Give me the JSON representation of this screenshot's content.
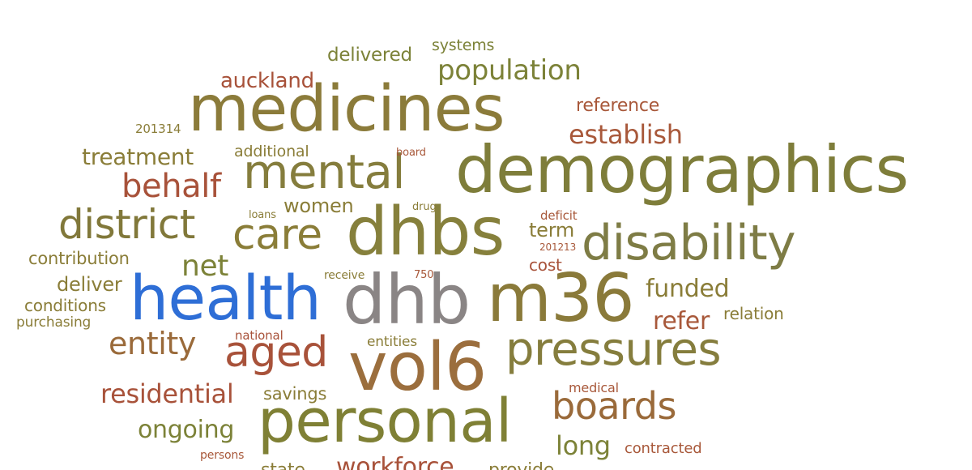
{
  "colors": {
    "olive": "#8a7d38",
    "olive_dark": "#7b7a3c",
    "olive_green": "#7c8238",
    "brown": "#9a6a3a",
    "rust": "#a8523a",
    "blue": "#2e6ed6",
    "gray": "#8a8585"
  },
  "words": [
    {
      "text": "medicines",
      "color": "#8b7b3a"
    },
    {
      "text": "demographics",
      "color": "#7e7d3a"
    },
    {
      "text": "dhbs",
      "color": "#86803c"
    },
    {
      "text": "dhb",
      "color": "#8a8585"
    },
    {
      "text": "m36",
      "color": "#8a7a3a"
    },
    {
      "text": "vol6",
      "color": "#9b6e3d"
    },
    {
      "text": "personal",
      "color": "#7f8035"
    },
    {
      "text": "health",
      "color": "#2e6ed6"
    },
    {
      "text": "mental",
      "color": "#857d3d"
    },
    {
      "text": "disability",
      "color": "#7e7c45"
    },
    {
      "text": "pressures",
      "color": "#857d3d"
    },
    {
      "text": "district",
      "color": "#81783a"
    },
    {
      "text": "care",
      "color": "#8a7d38"
    },
    {
      "text": "aged",
      "color": "#a8523a"
    },
    {
      "text": "boards",
      "color": "#9a6a3a"
    },
    {
      "text": "population",
      "color": "#7c8238"
    },
    {
      "text": "establish",
      "color": "#a8583a"
    },
    {
      "text": "behalf",
      "color": "#a8523a"
    },
    {
      "text": "entity",
      "color": "#9a6a3a"
    },
    {
      "text": "residential",
      "color": "#a8523a"
    },
    {
      "text": "treatment",
      "color": "#8a7d38"
    },
    {
      "text": "auckland",
      "color": "#a8523a"
    },
    {
      "text": "net",
      "color": "#7c8238"
    },
    {
      "text": "funded",
      "color": "#8a7d38"
    },
    {
      "text": "refer",
      "color": "#a8583a"
    },
    {
      "text": "ongoing",
      "color": "#7c8238"
    },
    {
      "text": "long",
      "color": "#7c8238"
    },
    {
      "text": "women",
      "color": "#8a7d38"
    },
    {
      "text": "delivered",
      "color": "#7c8238"
    },
    {
      "text": "reference",
      "color": "#a8583a"
    },
    {
      "text": "systems",
      "color": "#7c8238"
    },
    {
      "text": "term",
      "color": "#8a7d38"
    },
    {
      "text": "contribution",
      "color": "#8a7d38"
    },
    {
      "text": "deliver",
      "color": "#8a7d38"
    },
    {
      "text": "conditions",
      "color": "#8a7d38"
    },
    {
      "text": "savings",
      "color": "#8a7d38"
    },
    {
      "text": "additional",
      "color": "#8a7d38"
    },
    {
      "text": "relation",
      "color": "#8a7d38"
    },
    {
      "text": "contracted",
      "color": "#a8583a"
    },
    {
      "text": "cost",
      "color": "#a8523a"
    },
    {
      "text": "purchasing",
      "color": "#8a7d38"
    },
    {
      "text": "entities",
      "color": "#8a7d38"
    },
    {
      "text": "medical",
      "color": "#a8583a"
    },
    {
      "text": "201314",
      "color": "#8a7d38"
    },
    {
      "text": "deficit",
      "color": "#a8583a"
    },
    {
      "text": "national",
      "color": "#a8523a"
    },
    {
      "text": "persons",
      "color": "#a8583a"
    },
    {
      "text": "board",
      "color": "#a8583a"
    },
    {
      "text": "loans",
      "color": "#8a7d38"
    },
    {
      "text": "drug",
      "color": "#8a7d38"
    },
    {
      "text": "201213",
      "color": "#a8583a"
    },
    {
      "text": "receive",
      "color": "#8a7d38"
    },
    {
      "text": "750",
      "color": "#a8583a"
    },
    {
      "text": "workforce",
      "color": "#a8523a"
    },
    {
      "text": "state",
      "color": "#8a7d38"
    },
    {
      "text": "provide",
      "color": "#8a7d38"
    }
  ]
}
